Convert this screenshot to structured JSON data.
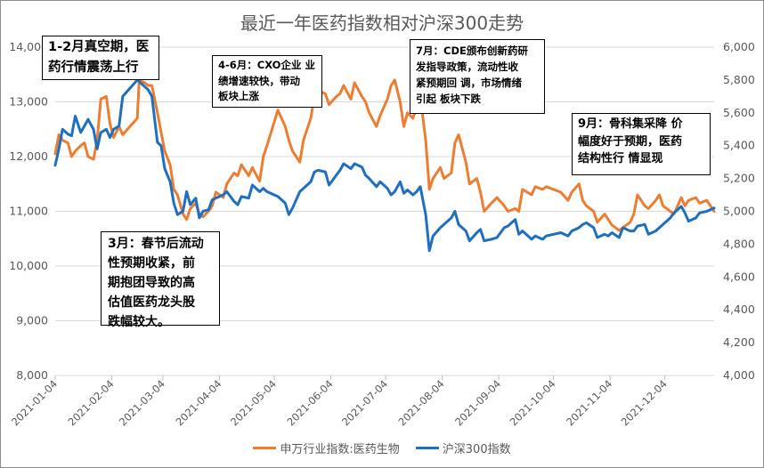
{
  "chart_data": {
    "type": "line",
    "title": "最近一年医药指数相对沪深300走势",
    "x_tick_labels": [
      "2021-01-04",
      "2021-02-04",
      "2021-03-04",
      "2021-04-04",
      "2021-05-04",
      "2021-06-04",
      "2021-07-04",
      "2021-08-04",
      "2021-09-04",
      "2021-10-04",
      "2021-11-04",
      "2021-12-04"
    ],
    "x_range": [
      "2021-01-04",
      "2021-12-31"
    ],
    "y_left": {
      "range": [
        8000,
        14000
      ],
      "ticks": [
        "8,000",
        "9,000",
        "10,000",
        "11,000",
        "12,000",
        "13,000",
        "14,000"
      ]
    },
    "y_right": {
      "range": [
        4000,
        6000
      ],
      "ticks": [
        "4,000",
        "4,200",
        "4,400",
        "4,600",
        "4,800",
        "5,000",
        "5,200",
        "5,400",
        "5,600",
        "5,800",
        "6,000"
      ]
    },
    "grid": "horizontal",
    "legend_position": "bottom",
    "series": [
      {
        "name": "申万行业指数:医药生物",
        "axis": "left",
        "color": "#ed7d31",
        "points": [
          [
            "2021-01-04",
            12050
          ],
          [
            "2021-01-06",
            12400
          ],
          [
            "2021-01-08",
            12300
          ],
          [
            "2021-01-11",
            12250
          ],
          [
            "2021-01-13",
            12000
          ],
          [
            "2021-01-15",
            12100
          ],
          [
            "2021-01-18",
            12200
          ],
          [
            "2021-01-20",
            12250
          ],
          [
            "2021-01-22",
            12000
          ],
          [
            "2021-01-25",
            11950
          ],
          [
            "2021-01-27",
            12300
          ],
          [
            "2021-01-29",
            13050
          ],
          [
            "2021-02-01",
            13100
          ],
          [
            "2021-02-03",
            12600
          ],
          [
            "2021-02-05",
            12350
          ],
          [
            "2021-02-08",
            12550
          ],
          [
            "2021-02-10",
            12400
          ],
          [
            "2021-02-18",
            12700
          ],
          [
            "2021-02-19",
            13400
          ],
          [
            "2021-02-22",
            13350
          ],
          [
            "2021-02-24",
            13300
          ],
          [
            "2021-02-26",
            13300
          ],
          [
            "2021-03-01",
            12800
          ],
          [
            "2021-03-03",
            12450
          ],
          [
            "2021-03-05",
            12100
          ],
          [
            "2021-03-08",
            11850
          ],
          [
            "2021-03-10",
            11400
          ],
          [
            "2021-03-12",
            11300
          ],
          [
            "2021-03-15",
            10950
          ],
          [
            "2021-03-17",
            10850
          ],
          [
            "2021-03-19",
            11050
          ],
          [
            "2021-03-22",
            11150
          ],
          [
            "2021-03-24",
            10950
          ],
          [
            "2021-03-26",
            10900
          ],
          [
            "2021-03-29",
            11000
          ],
          [
            "2021-03-31",
            11100
          ],
          [
            "2021-04-02",
            11350
          ],
          [
            "2021-04-06",
            11250
          ],
          [
            "2021-04-08",
            11500
          ],
          [
            "2021-04-12",
            11700
          ],
          [
            "2021-04-14",
            11650
          ],
          [
            "2021-04-16",
            11850
          ],
          [
            "2021-04-20",
            11650
          ],
          [
            "2021-04-22",
            11800
          ],
          [
            "2021-04-26",
            11550
          ],
          [
            "2021-04-28",
            12000
          ],
          [
            "2021-04-30",
            12200
          ],
          [
            "2021-05-06",
            12850
          ],
          [
            "2021-05-10",
            12550
          ],
          [
            "2021-05-12",
            12300
          ],
          [
            "2021-05-14",
            12100
          ],
          [
            "2021-05-18",
            11900
          ],
          [
            "2021-05-20",
            12300
          ],
          [
            "2021-05-24",
            12700
          ],
          [
            "2021-05-26",
            13100
          ],
          [
            "2021-05-28",
            13200
          ],
          [
            "2021-06-01",
            13150
          ],
          [
            "2021-06-03",
            12950
          ],
          [
            "2021-06-07",
            13100
          ],
          [
            "2021-06-09",
            13150
          ],
          [
            "2021-06-11",
            13300
          ],
          [
            "2021-06-15",
            13050
          ],
          [
            "2021-06-17",
            13350
          ],
          [
            "2021-06-21",
            13100
          ],
          [
            "2021-06-23",
            13000
          ],
          [
            "2021-06-25",
            12800
          ],
          [
            "2021-06-29",
            12550
          ],
          [
            "2021-07-01",
            12750
          ],
          [
            "2021-07-05",
            13050
          ],
          [
            "2021-07-07",
            13300
          ],
          [
            "2021-07-09",
            13400
          ],
          [
            "2021-07-12",
            13000
          ],
          [
            "2021-07-14",
            12550
          ],
          [
            "2021-07-16",
            12800
          ],
          [
            "2021-07-19",
            12700
          ],
          [
            "2021-07-21",
            12900
          ],
          [
            "2021-07-23",
            13100
          ],
          [
            "2021-07-26",
            12300
          ],
          [
            "2021-07-28",
            11400
          ],
          [
            "2021-07-30",
            11600
          ],
          [
            "2021-08-03",
            11800
          ],
          [
            "2021-08-05",
            11600
          ],
          [
            "2021-08-09",
            11700
          ],
          [
            "2021-08-11",
            12250
          ],
          [
            "2021-08-13",
            12400
          ],
          [
            "2021-08-17",
            11900
          ],
          [
            "2021-08-19",
            11500
          ],
          [
            "2021-08-23",
            11600
          ],
          [
            "2021-08-25",
            11350
          ],
          [
            "2021-08-27",
            11000
          ],
          [
            "2021-08-31",
            11150
          ],
          [
            "2021-09-03",
            11250
          ],
          [
            "2021-09-07",
            11100
          ],
          [
            "2021-09-09",
            11000
          ],
          [
            "2021-09-13",
            11050
          ],
          [
            "2021-09-15",
            11000
          ],
          [
            "2021-09-17",
            11400
          ],
          [
            "2021-09-22",
            11300
          ],
          [
            "2021-09-24",
            11450
          ],
          [
            "2021-09-28",
            11400
          ],
          [
            "2021-09-30",
            11450
          ],
          [
            "2021-10-08",
            11350
          ],
          [
            "2021-10-12",
            11200
          ],
          [
            "2021-10-14",
            11350
          ],
          [
            "2021-10-18",
            11500
          ],
          [
            "2021-10-20",
            11200
          ],
          [
            "2021-10-22",
            11100
          ],
          [
            "2021-10-26",
            11000
          ],
          [
            "2021-10-28",
            10800
          ],
          [
            "2021-11-01",
            10950
          ],
          [
            "2021-11-03",
            10850
          ],
          [
            "2021-11-05",
            10750
          ],
          [
            "2021-11-09",
            10650
          ],
          [
            "2021-11-11",
            10700
          ],
          [
            "2021-11-15",
            10800
          ],
          [
            "2021-11-17",
            10950
          ],
          [
            "2021-11-19",
            11300
          ],
          [
            "2021-11-23",
            11100
          ],
          [
            "2021-11-25",
            11050
          ],
          [
            "2021-11-29",
            11200
          ],
          [
            "2021-12-01",
            11300
          ],
          [
            "2021-12-03",
            11100
          ],
          [
            "2021-12-07",
            11000
          ],
          [
            "2021-12-09",
            10950
          ],
          [
            "2021-12-13",
            11250
          ],
          [
            "2021-12-15",
            11100
          ],
          [
            "2021-12-17",
            11200
          ],
          [
            "2021-12-21",
            11250
          ],
          [
            "2021-12-23",
            11150
          ],
          [
            "2021-12-27",
            11200
          ],
          [
            "2021-12-31",
            11000
          ]
        ]
      },
      {
        "name": "沪深300指数",
        "axis": "right",
        "color": "#1f6fc0",
        "points": [
          [
            "2021-01-04",
            5280
          ],
          [
            "2021-01-06",
            5380
          ],
          [
            "2021-01-08",
            5500
          ],
          [
            "2021-01-11",
            5470
          ],
          [
            "2021-01-13",
            5460
          ],
          [
            "2021-01-15",
            5580
          ],
          [
            "2021-01-18",
            5480
          ],
          [
            "2021-01-20",
            5520
          ],
          [
            "2021-01-22",
            5560
          ],
          [
            "2021-01-25",
            5500
          ],
          [
            "2021-01-27",
            5380
          ],
          [
            "2021-01-29",
            5480
          ],
          [
            "2021-02-01",
            5500
          ],
          [
            "2021-02-03",
            5450
          ],
          [
            "2021-02-05",
            5500
          ],
          [
            "2021-02-08",
            5520
          ],
          [
            "2021-02-10",
            5700
          ],
          [
            "2021-02-18",
            5800
          ],
          [
            "2021-02-19",
            5790
          ],
          [
            "2021-02-22",
            5760
          ],
          [
            "2021-02-24",
            5740
          ],
          [
            "2021-02-26",
            5700
          ],
          [
            "2021-03-01",
            5420
          ],
          [
            "2021-03-03",
            5400
          ],
          [
            "2021-03-05",
            5260
          ],
          [
            "2021-03-08",
            5180
          ],
          [
            "2021-03-10",
            5050
          ],
          [
            "2021-03-12",
            4980
          ],
          [
            "2021-03-15",
            5000
          ],
          [
            "2021-03-17",
            5120
          ],
          [
            "2021-03-19",
            5040
          ],
          [
            "2021-03-22",
            5080
          ],
          [
            "2021-03-24",
            4960
          ],
          [
            "2021-03-26",
            5000
          ],
          [
            "2021-03-29",
            5010
          ],
          [
            "2021-03-31",
            5070
          ],
          [
            "2021-04-02",
            5080
          ],
          [
            "2021-04-06",
            5100
          ],
          [
            "2021-04-08",
            5120
          ],
          [
            "2021-04-12",
            5060
          ],
          [
            "2021-04-14",
            5040
          ],
          [
            "2021-04-16",
            5090
          ],
          [
            "2021-04-20",
            5080
          ],
          [
            "2021-04-22",
            5160
          ],
          [
            "2021-04-26",
            5120
          ],
          [
            "2021-04-28",
            5140
          ],
          [
            "2021-04-30",
            5120
          ],
          [
            "2021-05-06",
            5090
          ],
          [
            "2021-05-10",
            5050
          ],
          [
            "2021-05-12",
            4980
          ],
          [
            "2021-05-14",
            5020
          ],
          [
            "2021-05-18",
            5120
          ],
          [
            "2021-05-20",
            5140
          ],
          [
            "2021-05-24",
            5180
          ],
          [
            "2021-05-26",
            5240
          ],
          [
            "2021-05-28",
            5250
          ],
          [
            "2021-06-01",
            5240
          ],
          [
            "2021-06-03",
            5160
          ],
          [
            "2021-06-07",
            5220
          ],
          [
            "2021-06-09",
            5250
          ],
          [
            "2021-06-11",
            5290
          ],
          [
            "2021-06-15",
            5260
          ],
          [
            "2021-06-17",
            5290
          ],
          [
            "2021-06-21",
            5270
          ],
          [
            "2021-06-23",
            5220
          ],
          [
            "2021-06-25",
            5200
          ],
          [
            "2021-06-29",
            5150
          ],
          [
            "2021-07-01",
            5180
          ],
          [
            "2021-07-05",
            5140
          ],
          [
            "2021-07-07",
            5100
          ],
          [
            "2021-07-09",
            5120
          ],
          [
            "2021-07-12",
            5180
          ],
          [
            "2021-07-14",
            5110
          ],
          [
            "2021-07-16",
            5130
          ],
          [
            "2021-07-19",
            5100
          ],
          [
            "2021-07-21",
            5120
          ],
          [
            "2021-07-23",
            5150
          ],
          [
            "2021-07-26",
            4980
          ],
          [
            "2021-07-28",
            4760
          ],
          [
            "2021-07-30",
            4850
          ],
          [
            "2021-08-03",
            4900
          ],
          [
            "2021-08-05",
            4920
          ],
          [
            "2021-08-09",
            4960
          ],
          [
            "2021-08-11",
            5000
          ],
          [
            "2021-08-13",
            4920
          ],
          [
            "2021-08-17",
            4880
          ],
          [
            "2021-08-19",
            4820
          ],
          [
            "2021-08-23",
            4870
          ],
          [
            "2021-08-25",
            4890
          ],
          [
            "2021-08-27",
            4820
          ],
          [
            "2021-08-31",
            4830
          ],
          [
            "2021-09-03",
            4840
          ],
          [
            "2021-09-07",
            4900
          ],
          [
            "2021-09-09",
            4910
          ],
          [
            "2021-09-13",
            4950
          ],
          [
            "2021-09-15",
            4860
          ],
          [
            "2021-09-17",
            4880
          ],
          [
            "2021-09-22",
            4830
          ],
          [
            "2021-09-24",
            4850
          ],
          [
            "2021-09-28",
            4830
          ],
          [
            "2021-09-30",
            4850
          ],
          [
            "2021-10-08",
            4870
          ],
          [
            "2021-10-12",
            4850
          ],
          [
            "2021-10-14",
            4880
          ],
          [
            "2021-10-18",
            4900
          ],
          [
            "2021-10-20",
            4920
          ],
          [
            "2021-10-22",
            4930
          ],
          [
            "2021-10-26",
            4900
          ],
          [
            "2021-10-28",
            4840
          ],
          [
            "2021-11-01",
            4860
          ],
          [
            "2021-11-03",
            4850
          ],
          [
            "2021-11-05",
            4870
          ],
          [
            "2021-11-09",
            4840
          ],
          [
            "2021-11-11",
            4900
          ],
          [
            "2021-11-15",
            4880
          ],
          [
            "2021-11-17",
            4880
          ],
          [
            "2021-11-19",
            4910
          ],
          [
            "2021-11-23",
            4920
          ],
          [
            "2021-11-25",
            4860
          ],
          [
            "2021-11-29",
            4880
          ],
          [
            "2021-12-01",
            4900
          ],
          [
            "2021-12-03",
            4920
          ],
          [
            "2021-12-07",
            4960
          ],
          [
            "2021-12-09",
            4990
          ],
          [
            "2021-12-13",
            5030
          ],
          [
            "2021-12-15",
            4990
          ],
          [
            "2021-12-17",
            4940
          ],
          [
            "2021-12-21",
            4960
          ],
          [
            "2021-12-23",
            4990
          ],
          [
            "2021-12-27",
            5000
          ],
          [
            "2021-12-31",
            5020
          ]
        ]
      }
    ],
    "annotations": [
      "1-2月真空期，医\n药行情震荡上行",
      "4-6月：CXO企业 业\n绩增速较快，带动\n板块上涨",
      "7月：CDE颁布创新药研\n发指导政策，流动性收\n紧预期回 调，市场情绪\n引起 板块下跌",
      "9月：骨科集采降 价\n幅度好于预期，医药\n结构性行 情显现",
      "3月：春节后流动\n性预期收紧，前\n期抱团导致的高\n估值医药龙头股\n跌幅较大。"
    ]
  }
}
